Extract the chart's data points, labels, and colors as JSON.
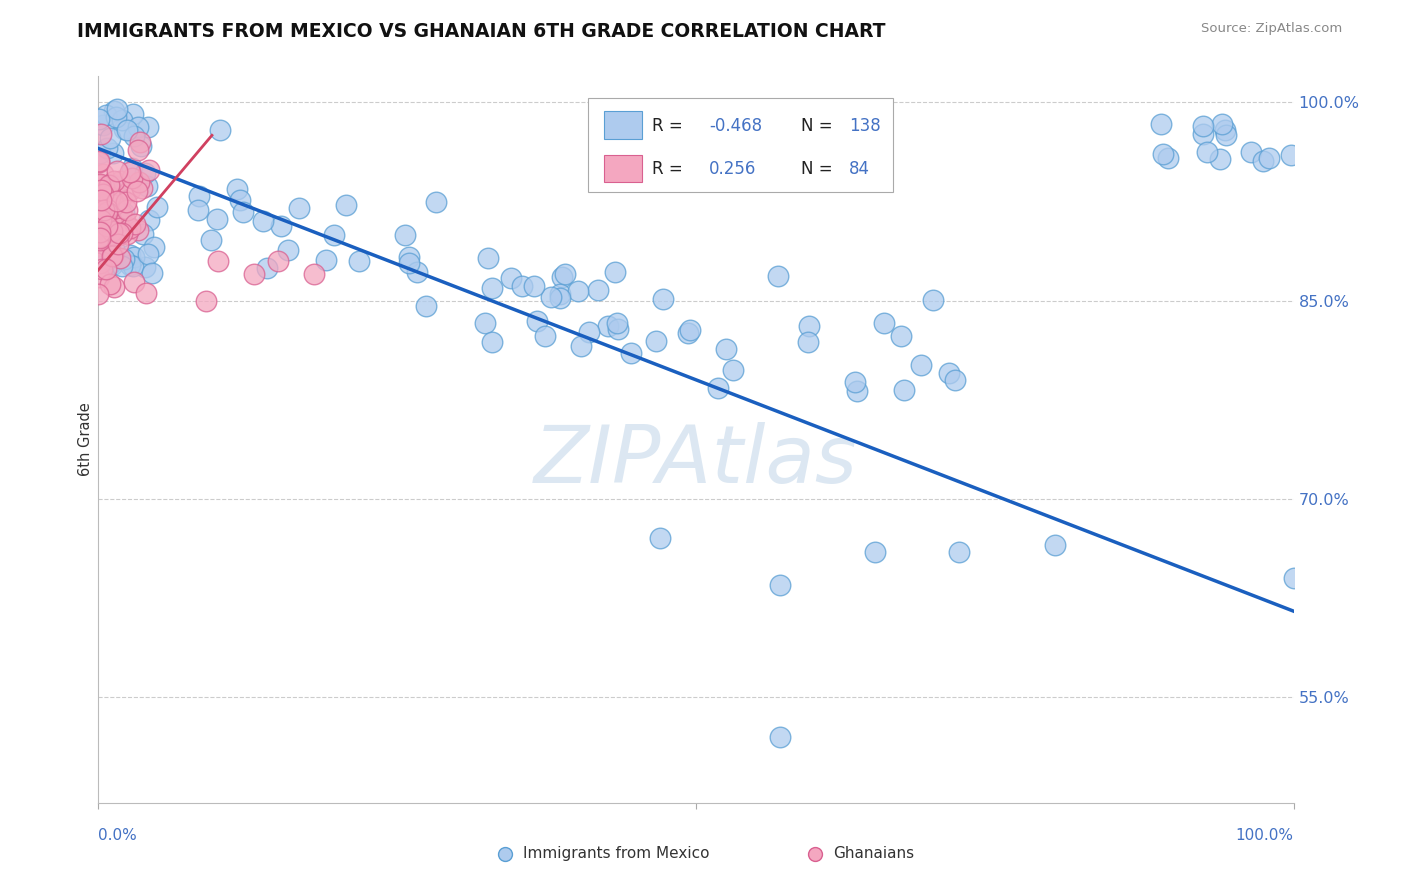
{
  "title": "IMMIGRANTS FROM MEXICO VS GHANAIAN 6TH GRADE CORRELATION CHART",
  "source": "Source: ZipAtlas.com",
  "ylabel": "6th Grade",
  "ylabel_right_labels": [
    "100.0%",
    "85.0%",
    "70.0%",
    "55.0%"
  ],
  "ylabel_right_vals": [
    1.0,
    0.85,
    0.7,
    0.55
  ],
  "blue_R": -0.468,
  "blue_N": 138,
  "pink_R": 0.256,
  "pink_N": 84,
  "blue_color": "#aecbee",
  "blue_edge": "#5a9fd4",
  "pink_color": "#f4a7c0",
  "pink_edge": "#d96090",
  "blue_line_color": "#1a5fbf",
  "pink_line_color": "#d04060",
  "watermark": "ZIPAtlas",
  "watermark_color": "#c5d8ea",
  "background_color": "#ffffff",
  "grid_color": "#cccccc",
  "title_color": "#111111",
  "ylim_min": 0.47,
  "ylim_max": 1.02,
  "xlim_min": 0.0,
  "xlim_max": 1.0,
  "blue_line_x0": 0.0,
  "blue_line_y0": 0.965,
  "blue_line_x1": 1.0,
  "blue_line_y1": 0.615,
  "pink_line_x0": -0.003,
  "pink_line_y0": 0.87,
  "pink_line_x1": 0.095,
  "pink_line_y1": 0.975
}
